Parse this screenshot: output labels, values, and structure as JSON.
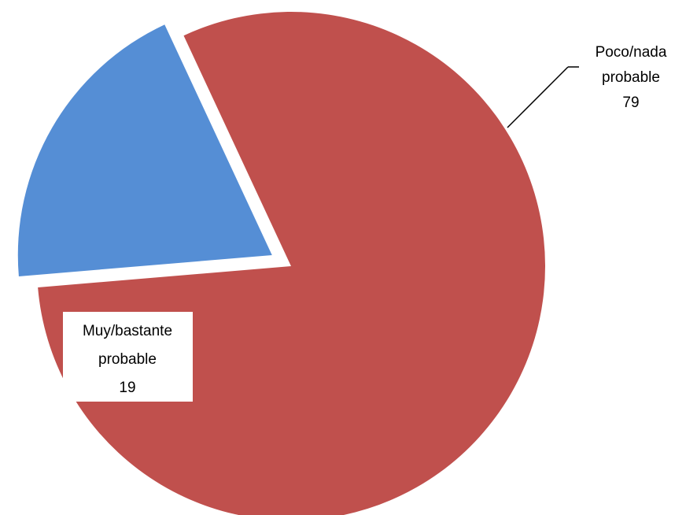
{
  "chart_data": {
    "type": "pie",
    "title": "",
    "series": [
      {
        "values": [
          79,
          19
        ],
        "categories": [
          "Poco/nada probable",
          "Muy/bastante probable"
        ]
      }
    ],
    "slices": [
      {
        "label_lines": [
          "Poco/nada",
          "probable"
        ],
        "value": 79,
        "value_label": "79",
        "color": "#c0504d",
        "exploded": false
      },
      {
        "label_lines": [
          "Muy/bastante",
          "probable"
        ],
        "value": 19,
        "value_label": "19",
        "color": "#558ed5",
        "exploded": true
      }
    ],
    "legend": "none",
    "data_labels": "category-and-value"
  }
}
